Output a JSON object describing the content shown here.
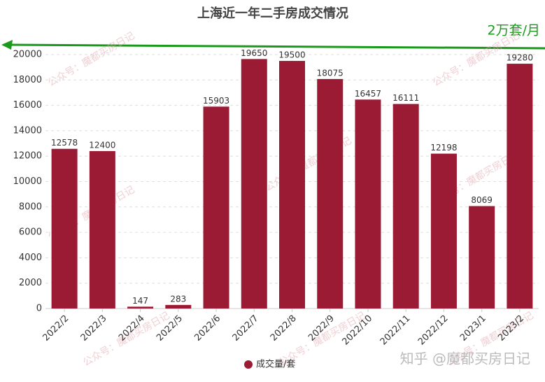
{
  "chart_data": {
    "type": "bar",
    "title": "上海近一年二手房成交情况",
    "annotation": "2万套/月",
    "watermark": "公众号：魔都买房日记",
    "source_watermark": "知乎 @魔都买房日记",
    "categories": [
      "2022/2",
      "2022/3",
      "2022/4",
      "2022/5",
      "2022/6",
      "2022/7",
      "2022/8",
      "2022/9",
      "2022/10",
      "2022/11",
      "2022/12",
      "2023/1",
      "2023/2"
    ],
    "series": [
      {
        "name": "成交量/套",
        "color": "#9b1b35",
        "values": [
          12578,
          12400,
          147,
          283,
          15903,
          19650,
          19500,
          18075,
          16457,
          16111,
          12198,
          8069,
          19280
        ]
      }
    ],
    "ylim": [
      0,
      20000
    ],
    "yticks": [
      0,
      2000,
      4000,
      6000,
      8000,
      10000,
      12000,
      14000,
      16000,
      18000,
      20000
    ],
    "grid": true,
    "legend": "bottom"
  }
}
